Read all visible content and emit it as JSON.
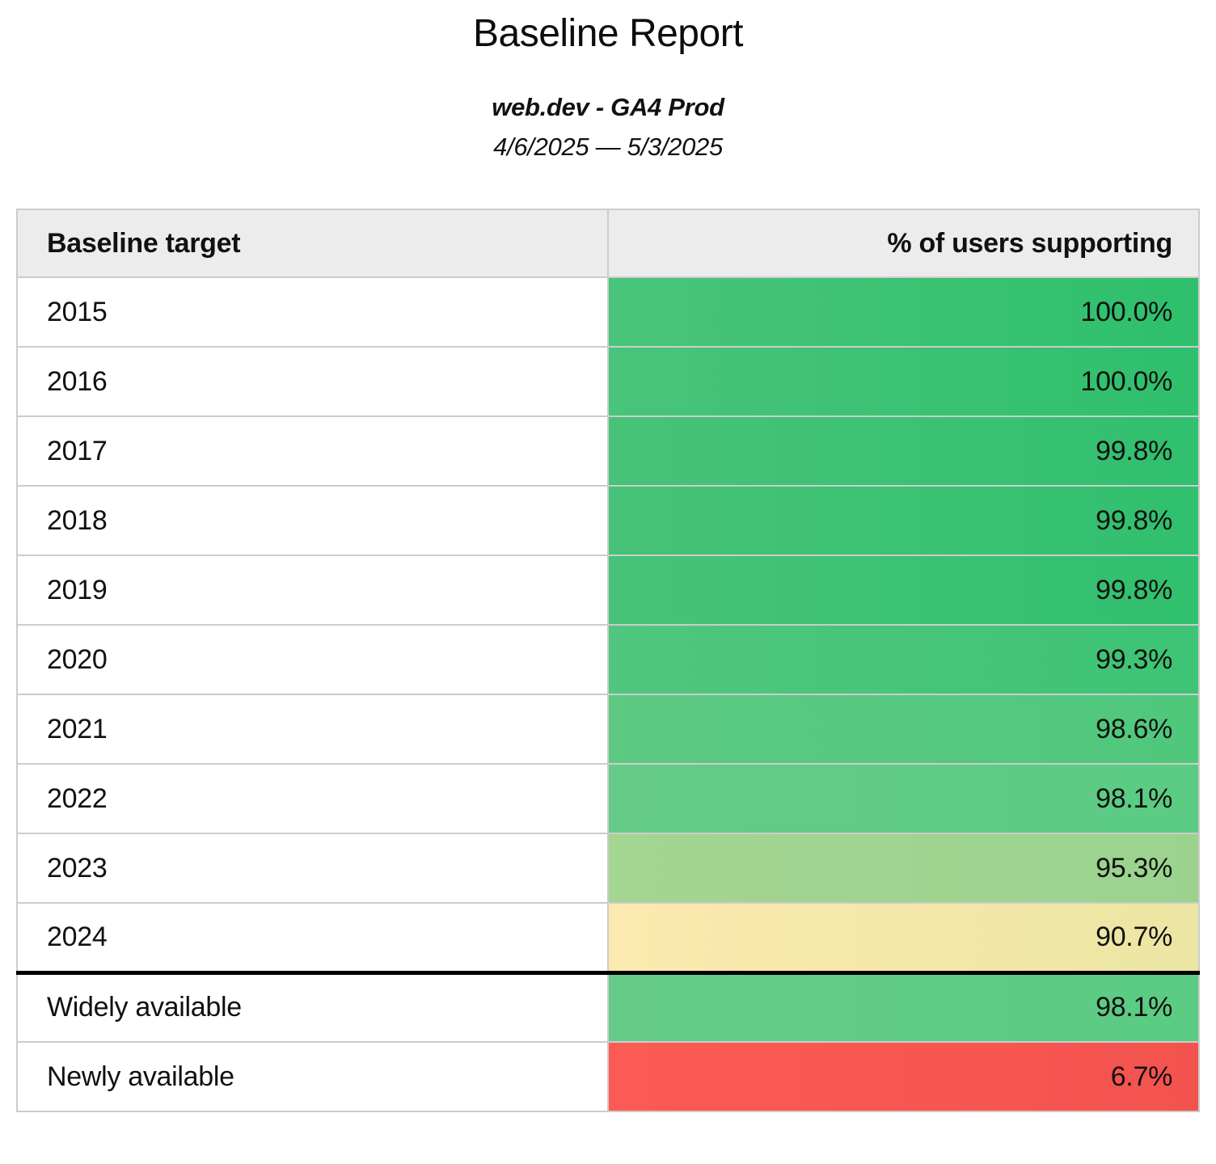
{
  "page": {
    "title": "Baseline Report",
    "subtitle": "web.dev - GA4 Prod",
    "date_range": "4/6/2025 — 5/3/2025"
  },
  "table": {
    "columns": [
      {
        "label": "Baseline target",
        "align": "left"
      },
      {
        "label": "% of users supporting",
        "align": "right"
      }
    ],
    "style": {
      "header_bg": "#ececec",
      "border_color": "#cccccc",
      "thick_border_color": "#000000"
    },
    "rows": [
      {
        "label": "2015",
        "value": "100.0%",
        "group": "year",
        "thick_top": false,
        "color_left": "#49c47b",
        "color_right": "#2ec06c"
      },
      {
        "label": "2016",
        "value": "100.0%",
        "group": "year",
        "thick_top": false,
        "color_left": "#49c47b",
        "color_right": "#2ec06c"
      },
      {
        "label": "2017",
        "value": "99.8%",
        "group": "year",
        "thick_top": false,
        "color_left": "#47c379",
        "color_right": "#30c06e"
      },
      {
        "label": "2018",
        "value": "99.8%",
        "group": "year",
        "thick_top": false,
        "color_left": "#47c379",
        "color_right": "#30c06e"
      },
      {
        "label": "2019",
        "value": "99.8%",
        "group": "year",
        "thick_top": false,
        "color_left": "#47c379",
        "color_right": "#30c06e"
      },
      {
        "label": "2020",
        "value": "99.3%",
        "group": "year",
        "thick_top": false,
        "color_left": "#50c67e",
        "color_right": "#3dc474"
      },
      {
        "label": "2021",
        "value": "98.6%",
        "group": "year",
        "thick_top": false,
        "color_left": "#5dc983",
        "color_right": "#4fc87c"
      },
      {
        "label": "2022",
        "value": "98.1%",
        "group": "year",
        "thick_top": false,
        "color_left": "#66cb88",
        "color_right": "#5bcb83"
      },
      {
        "label": "2023",
        "value": "95.3%",
        "group": "year",
        "thick_top": false,
        "color_left": "#a4d591",
        "color_right": "#9bd38e"
      },
      {
        "label": "2024",
        "value": "90.7%",
        "group": "year",
        "thick_top": false,
        "color_left": "#fce9af",
        "color_right": "#ece5a3"
      },
      {
        "label": "Widely available",
        "value": "98.1%",
        "group": "summary",
        "thick_top": true,
        "color_left": "#66cb88",
        "color_right": "#5bcb83"
      },
      {
        "label": "Newly available",
        "value": "6.7%",
        "group": "summary",
        "thick_top": false,
        "color_left": "#fc5a55",
        "color_right": "#f3534e"
      }
    ]
  }
}
